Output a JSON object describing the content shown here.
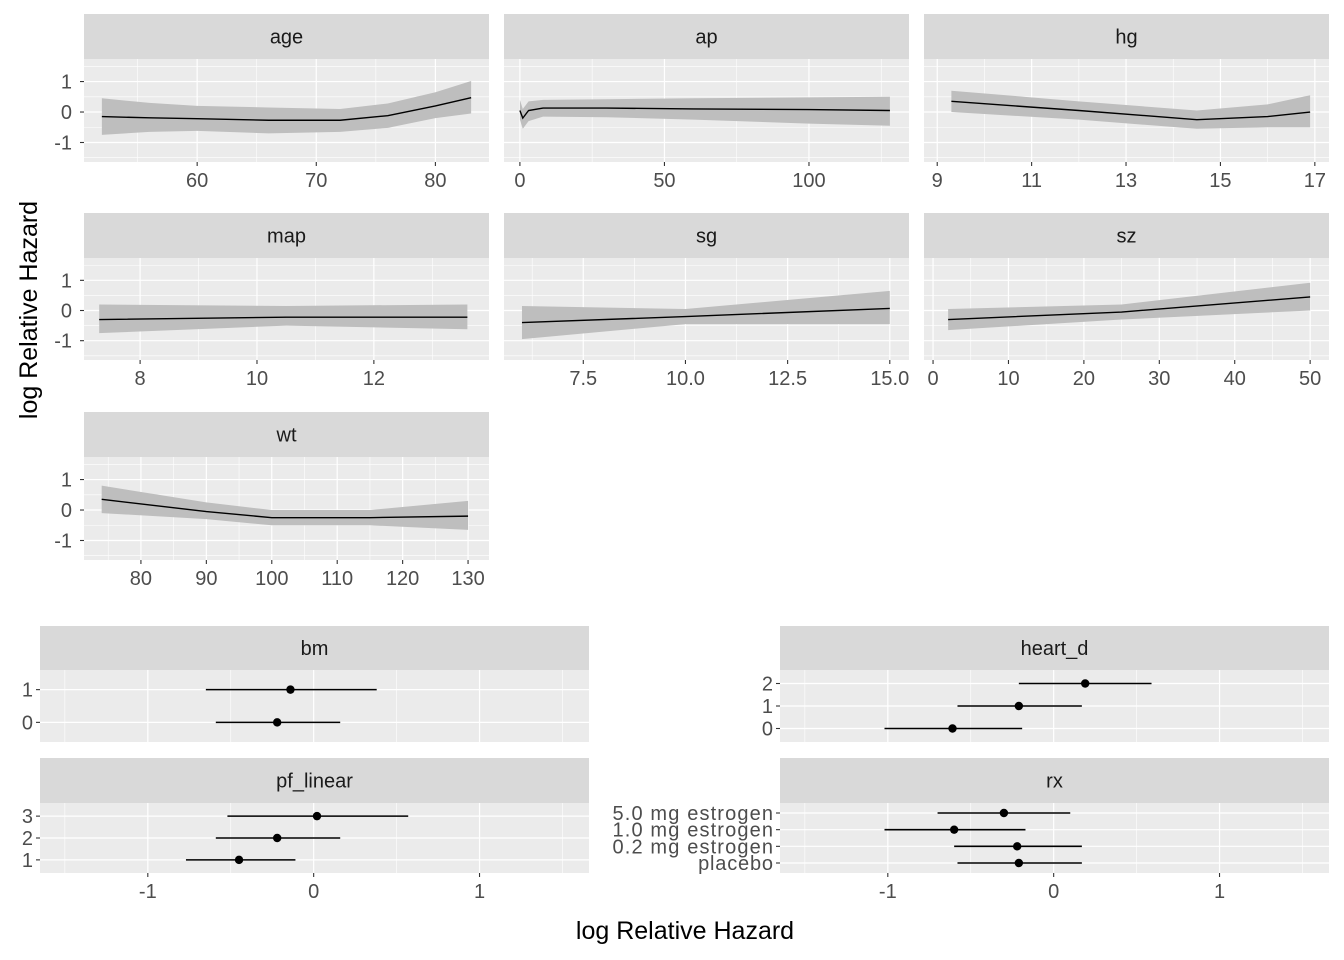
{
  "chart_data": {
    "type": "line",
    "xlabel": "log Relative Hazard",
    "ylabel": "log Relative Hazard",
    "colors": {
      "panel": "#EBEBEB",
      "strip": "#D9D9D9",
      "band": "#BEBEBE",
      "line": "#000000"
    },
    "continuous": [
      {
        "name": "age",
        "ylim": [
          -1.64,
          1.74
        ],
        "yticks": [
          -1,
          0,
          1
        ],
        "xlim": [
          50.5,
          84.5
        ],
        "xticks": [
          60,
          70,
          80
        ],
        "xtick_labels": [
          "60",
          "70",
          "80"
        ],
        "points": [
          [
            52,
            -0.15,
            -0.75,
            0.45
          ],
          [
            56,
            -0.19,
            -0.65,
            0.3
          ],
          [
            60,
            -0.22,
            -0.62,
            0.2
          ],
          [
            66,
            -0.27,
            -0.7,
            0.15
          ],
          [
            72,
            -0.27,
            -0.65,
            0.1
          ],
          [
            76,
            -0.12,
            -0.52,
            0.28
          ],
          [
            80,
            0.2,
            -0.2,
            0.65
          ],
          [
            83,
            0.47,
            -0.05,
            1.02
          ]
        ]
      },
      {
        "name": "ap",
        "ylim": [
          -1.64,
          1.74
        ],
        "yticks": [
          -1,
          0,
          1
        ],
        "xlim": [
          -5.5,
          134.6
        ],
        "xticks": [
          0,
          50,
          100
        ],
        "xtick_labels": [
          "0",
          "50",
          "100"
        ],
        "points": [
          [
            0,
            0.05,
            -0.25,
            0.4
          ],
          [
            1,
            -0.2,
            -0.55,
            0.1
          ],
          [
            3,
            0.05,
            -0.3,
            0.35
          ],
          [
            8,
            0.13,
            -0.15,
            0.4
          ],
          [
            30,
            0.13,
            -0.17,
            0.42
          ],
          [
            60,
            0.1,
            -0.25,
            0.45
          ],
          [
            100,
            0.08,
            -0.38,
            0.48
          ],
          [
            128,
            0.05,
            -0.45,
            0.5
          ]
        ]
      },
      {
        "name": "hg",
        "ylim": [
          -1.64,
          1.74
        ],
        "yticks": [
          -1,
          0,
          1
        ],
        "xlim": [
          8.72,
          17.3
        ],
        "xticks": [
          9,
          11,
          13,
          15,
          17
        ],
        "xtick_labels": [
          "9",
          "11",
          "13",
          "15",
          "17"
        ],
        "points": [
          [
            9.3,
            0.35,
            0.0,
            0.7
          ],
          [
            12,
            0.05,
            -0.25,
            0.35
          ],
          [
            14.5,
            -0.25,
            -0.55,
            0.05
          ],
          [
            16,
            -0.15,
            -0.5,
            0.25
          ],
          [
            16.9,
            0.0,
            -0.5,
            0.55
          ]
        ]
      },
      {
        "name": "map",
        "ylim": [
          -1.64,
          1.74
        ],
        "yticks": [
          -1,
          0,
          1
        ],
        "xlim": [
          7.04,
          13.97
        ],
        "xticks": [
          8,
          10,
          12
        ],
        "xtick_labels": [
          "8",
          "10",
          "12"
        ],
        "points": [
          [
            7.3,
            -0.3,
            -0.75,
            0.2
          ],
          [
            10.5,
            -0.22,
            -0.5,
            0.15
          ],
          [
            13.6,
            -0.22,
            -0.62,
            0.2
          ]
        ]
      },
      {
        "name": "sg",
        "ylim": [
          -1.64,
          1.74
        ],
        "yticks": [
          -1,
          0,
          1
        ],
        "xlim": [
          5.56,
          15.47
        ],
        "xticks": [
          7.5,
          10,
          12.5,
          15
        ],
        "xtick_labels": [
          "7.5",
          "10.0",
          "12.5",
          "15.0"
        ],
        "points": [
          [
            6,
            -0.4,
            -0.95,
            0.15
          ],
          [
            10,
            -0.2,
            -0.45,
            0.05
          ],
          [
            15,
            0.07,
            -0.45,
            0.65
          ]
        ]
      },
      {
        "name": "sz",
        "ylim": [
          -1.64,
          1.74
        ],
        "yticks": [
          -1,
          0,
          1
        ],
        "xlim": [
          -1.2,
          52.5
        ],
        "xticks": [
          0,
          10,
          20,
          30,
          40,
          50
        ],
        "xtick_labels": [
          "0",
          "10",
          "20",
          "30",
          "40",
          "50"
        ],
        "points": [
          [
            2,
            -0.3,
            -0.65,
            0.05
          ],
          [
            25,
            -0.05,
            -0.3,
            0.2
          ],
          [
            50,
            0.45,
            0.0,
            0.92
          ]
        ]
      },
      {
        "name": "wt",
        "ylim": [
          -1.64,
          1.74
        ],
        "yticks": [
          -1,
          0,
          1
        ],
        "xlim": [
          71.3,
          133.2
        ],
        "xticks": [
          80,
          90,
          100,
          110,
          120,
          130
        ],
        "xtick_labels": [
          "80",
          "90",
          "100",
          "110",
          "120",
          "130"
        ],
        "points": [
          [
            74,
            0.35,
            -0.1,
            0.8
          ],
          [
            90,
            -0.05,
            -0.3,
            0.25
          ],
          [
            100,
            -0.25,
            -0.5,
            0.0
          ],
          [
            115,
            -0.25,
            -0.5,
            0.0
          ],
          [
            130,
            -0.2,
            -0.65,
            0.3
          ]
        ]
      }
    ],
    "ytick_labels": [
      "-1",
      "0",
      "1"
    ],
    "categorical_xlim": [
      -1.65,
      1.66
    ],
    "categorical_xticks": [
      -1,
      0,
      1
    ],
    "categorical_xtick_labels": [
      "-1",
      "0",
      "1"
    ],
    "categorical": [
      {
        "name": "bm",
        "levels": [
          {
            "label": "0",
            "est": -0.22,
            "lo": -0.59,
            "hi": 0.16
          },
          {
            "label": "1",
            "est": -0.14,
            "lo": -0.65,
            "hi": 0.38
          }
        ]
      },
      {
        "name": "pf_linear",
        "levels": [
          {
            "label": "1",
            "est": -0.45,
            "lo": -0.77,
            "hi": -0.11
          },
          {
            "label": "2",
            "est": -0.22,
            "lo": -0.59,
            "hi": 0.16
          },
          {
            "label": "3",
            "est": 0.02,
            "lo": -0.52,
            "hi": 0.57
          }
        ]
      },
      {
        "name": "heart_d",
        "levels": [
          {
            "label": "0",
            "est": -0.61,
            "lo": -1.02,
            "hi": -0.19
          },
          {
            "label": "1",
            "est": -0.21,
            "lo": -0.58,
            "hi": 0.17
          },
          {
            "label": "2",
            "est": 0.19,
            "lo": -0.21,
            "hi": 0.59
          }
        ]
      },
      {
        "name": "rx",
        "levels": [
          {
            "label": "placebo",
            "est": -0.21,
            "lo": -0.58,
            "hi": 0.17
          },
          {
            "label": "0.2 mg estrogen",
            "est": -0.22,
            "lo": -0.6,
            "hi": 0.17
          },
          {
            "label": "1.0 mg estrogen",
            "est": -0.6,
            "lo": -1.02,
            "hi": -0.17
          },
          {
            "label": "5.0 mg estrogen",
            "est": -0.3,
            "lo": -0.7,
            "hi": 0.1
          }
        ]
      }
    ]
  }
}
